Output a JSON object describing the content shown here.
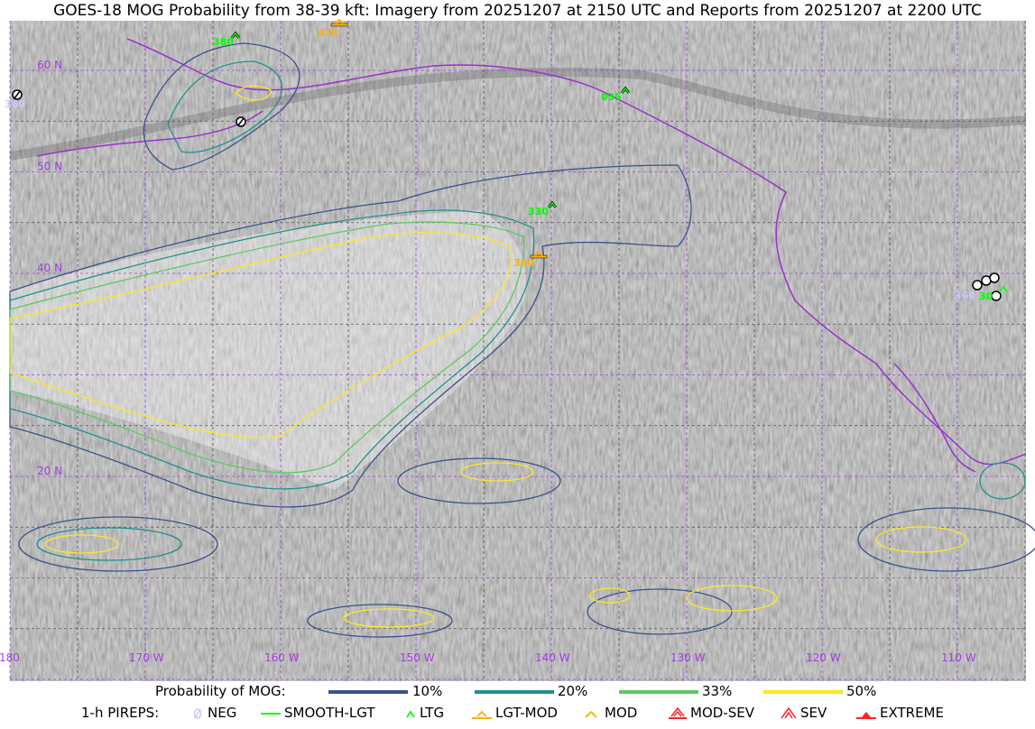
{
  "title": "GOES-18 MOG Probability from 38-39 kft: Imagery from 20251207 at 2150 UTC and Reports from 20251207 at 2200 UTC",
  "map": {
    "background": "#b8b8b8",
    "grid_color": "#a040e0",
    "coast_color": "#9932cc",
    "lat_labels": [
      {
        "lat": 60,
        "label": "60 N"
      },
      {
        "lat": 50,
        "label": "50 N"
      },
      {
        "lat": 40,
        "label": "40 N"
      },
      {
        "lat": 20,
        "label": "20 N"
      }
    ],
    "lon_labels": [
      {
        "lon": -180,
        "label": "180"
      },
      {
        "lon": -170,
        "label": "170 W"
      },
      {
        "lon": -160,
        "label": "160 W"
      },
      {
        "lon": -150,
        "label": "150 W"
      },
      {
        "lon": -140,
        "label": "140 W"
      },
      {
        "lon": -130,
        "label": "130 W"
      },
      {
        "lon": -120,
        "label": "120 W"
      },
      {
        "lon": -110,
        "label": "110 W"
      }
    ],
    "pireps": [
      {
        "type": "LTG",
        "label": "380",
        "color": "#00ff00"
      },
      {
        "type": "LGT-MOD",
        "label": "370",
        "color": "#ffb000"
      },
      {
        "type": "LTG",
        "label": "035",
        "color": "#00ff00"
      },
      {
        "type": "LTG",
        "label": "330",
        "color": "#00ff00"
      },
      {
        "type": "LGT-MOD",
        "label": "350",
        "color": "#ffb000"
      },
      {
        "type": "NEG",
        "label": "360",
        "color": "#c8c8ff"
      },
      {
        "type": "NEG",
        "label": "",
        "color": "#c8c8ff"
      },
      {
        "type": "NEG",
        "label": "360",
        "color": "#c8c8ff"
      },
      {
        "type": "LTG",
        "label": "30",
        "color": "#00ff00"
      }
    ]
  },
  "legend": {
    "mog_label": "Probability of MOG:",
    "mog_levels": [
      {
        "label": "10%",
        "color": "#3b528b"
      },
      {
        "label": "20%",
        "color": "#21918c"
      },
      {
        "label": "33%",
        "color": "#5ec962"
      },
      {
        "label": "50%",
        "color": "#fde725"
      }
    ],
    "pirep_label": "1-h PIREPS:",
    "pirep_types": [
      {
        "label": "NEG",
        "icon": "neg-circle-slash-icon",
        "color": "#c8c8ff"
      },
      {
        "label": "SMOOTH-LGT",
        "icon": "smooth-light-dash-icon",
        "color": "#00ff00"
      },
      {
        "label": "LTG",
        "icon": "caret-icon",
        "color": "#00ff00"
      },
      {
        "label": "LGT-MOD",
        "icon": "caret-bar-icon",
        "color": "#ffb000"
      },
      {
        "label": "MOD",
        "icon": "caret-icon",
        "color": "#ffb000"
      },
      {
        "label": "MOD-SEV",
        "icon": "double-caret-bar-icon",
        "color": "#ff2020"
      },
      {
        "label": "SEV",
        "icon": "double-caret-icon",
        "color": "#ff2020"
      },
      {
        "label": "EXTREME",
        "icon": "filled-triangle-icon",
        "color": "#ff2020"
      }
    ]
  }
}
